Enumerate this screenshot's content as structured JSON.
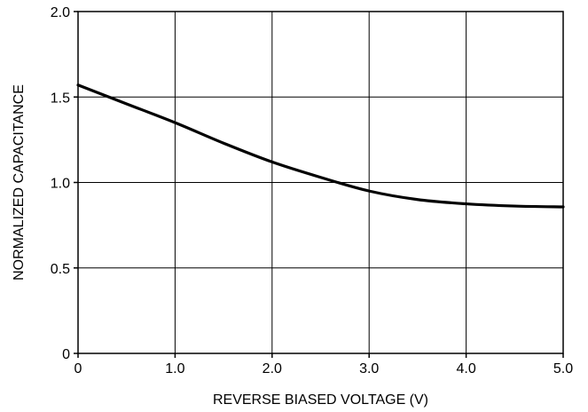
{
  "chart_data": {
    "type": "line",
    "title": "",
    "xlabel": "REVERSE BIASED VOLTAGE (V)",
    "ylabel": "NORMALIZED CAPACITANCE",
    "xlim": [
      0,
      5
    ],
    "ylim": [
      0,
      2
    ],
    "x_ticks": [
      0,
      1,
      2,
      3,
      4,
      5
    ],
    "x_tick_labels": [
      "0",
      "1.0",
      "2.0",
      "3.0",
      "4.0",
      "5.0"
    ],
    "y_ticks": [
      0,
      0.5,
      1,
      1.5,
      2
    ],
    "y_tick_labels": [
      "0",
      "0.5",
      "1.0",
      "1.5",
      "2.0"
    ],
    "grid": true,
    "series": [
      {
        "color": "#000000",
        "x": [
          0,
          0.5,
          1.0,
          1.5,
          2.0,
          2.5,
          3.0,
          3.5,
          4.0,
          4.5,
          5.0
        ],
        "y": [
          1.57,
          1.46,
          1.35,
          1.23,
          1.12,
          1.03,
          0.95,
          0.9,
          0.875,
          0.862,
          0.857
        ]
      }
    ]
  }
}
